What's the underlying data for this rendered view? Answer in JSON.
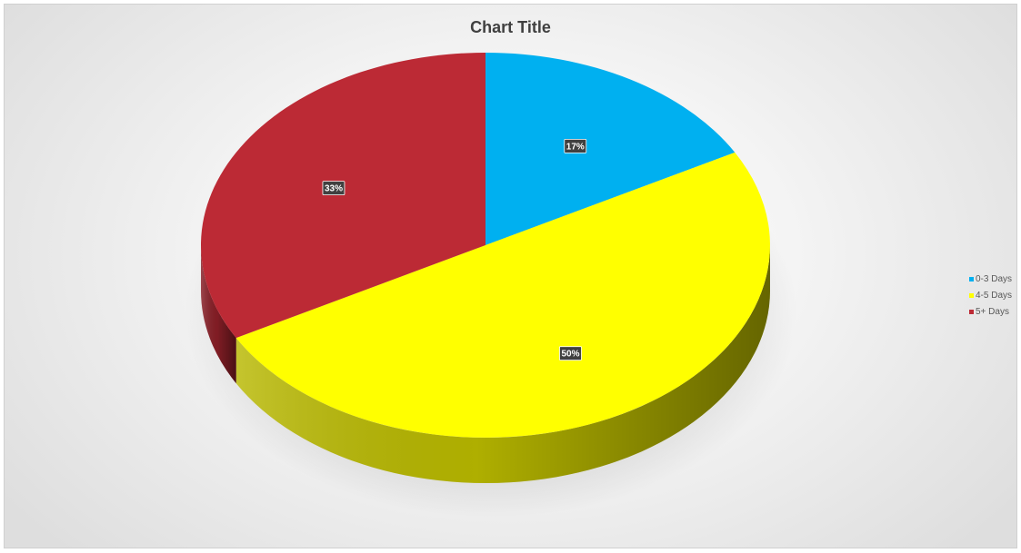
{
  "chart_data": {
    "type": "pie",
    "title": "Chart Title",
    "three_d": true,
    "legend_position": "right",
    "slices": [
      {
        "label": "0-3 Days",
        "value": 17,
        "display": "17%",
        "color": "#00B0F0"
      },
      {
        "label": "4-5 Days",
        "value": 50,
        "display": "50%",
        "color": "#FFFF00"
      },
      {
        "label": "5+ Days",
        "value": 33,
        "display": "33%",
        "color": "#BC2A35"
      }
    ]
  }
}
